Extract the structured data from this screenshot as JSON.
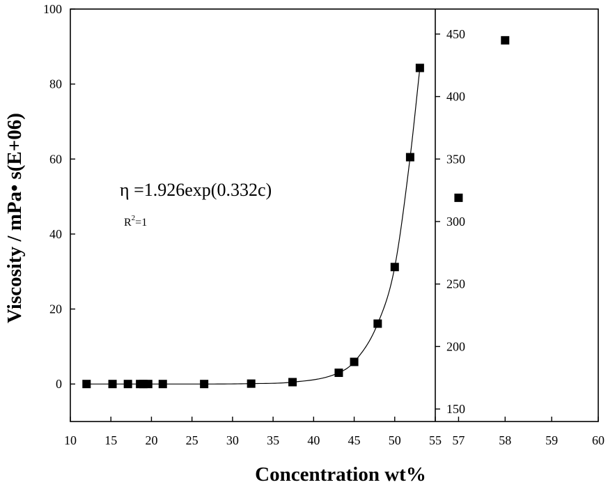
{
  "chart_data": {
    "type": "scatter",
    "xlabel": "Concentration wt%",
    "ylabel": "Viscosity / mPa• s(E+06)",
    "grid": false,
    "legend": "none",
    "colors": {
      "axis": "#000000",
      "marker": "#000000",
      "background": "#ffffff"
    },
    "panels": [
      {
        "name": "main",
        "xlim": [
          10,
          55
        ],
        "ylim": [
          -10,
          100
        ],
        "x_ticks": [
          10,
          15,
          20,
          25,
          30,
          35,
          40,
          45,
          50,
          55
        ],
        "y_ticks": [
          0,
          20,
          40,
          60,
          80,
          100
        ],
        "points": [
          {
            "x": 12.0,
            "y": 0.0
          },
          {
            "x": 15.2,
            "y": 0.0
          },
          {
            "x": 17.1,
            "y": 0.0
          },
          {
            "x": 18.6,
            "y": 0.0
          },
          {
            "x": 19.0,
            "y": 0.0
          },
          {
            "x": 19.6,
            "y": 0.0
          },
          {
            "x": 21.4,
            "y": 0.0
          },
          {
            "x": 26.5,
            "y": 0.0
          },
          {
            "x": 32.3,
            "y": 0.1
          },
          {
            "x": 37.4,
            "y": 0.5
          },
          {
            "x": 43.1,
            "y": 3.0
          },
          {
            "x": 45.0,
            "y": 5.9
          },
          {
            "x": 47.9,
            "y": 16.1
          },
          {
            "x": 50.0,
            "y": 31.2
          },
          {
            "x": 51.9,
            "y": 60.5
          },
          {
            "x": 53.1,
            "y": 84.3
          }
        ],
        "fit": {
          "equation": "η =1.926exp(0.332c)",
          "r_squared_prefix": "R",
          "r_squared_exponent": "2",
          "r_squared_suffix": "=1"
        }
      },
      {
        "name": "inset",
        "xlim": [
          56.5,
          60
        ],
        "ylim": [
          140,
          470
        ],
        "x_ticks": [
          57,
          58,
          59,
          60
        ],
        "y_ticks": [
          150,
          200,
          250,
          300,
          350,
          400,
          450
        ],
        "points": [
          {
            "x": 57.0,
            "y": 319
          },
          {
            "x": 58.0,
            "y": 445
          }
        ]
      }
    ]
  }
}
